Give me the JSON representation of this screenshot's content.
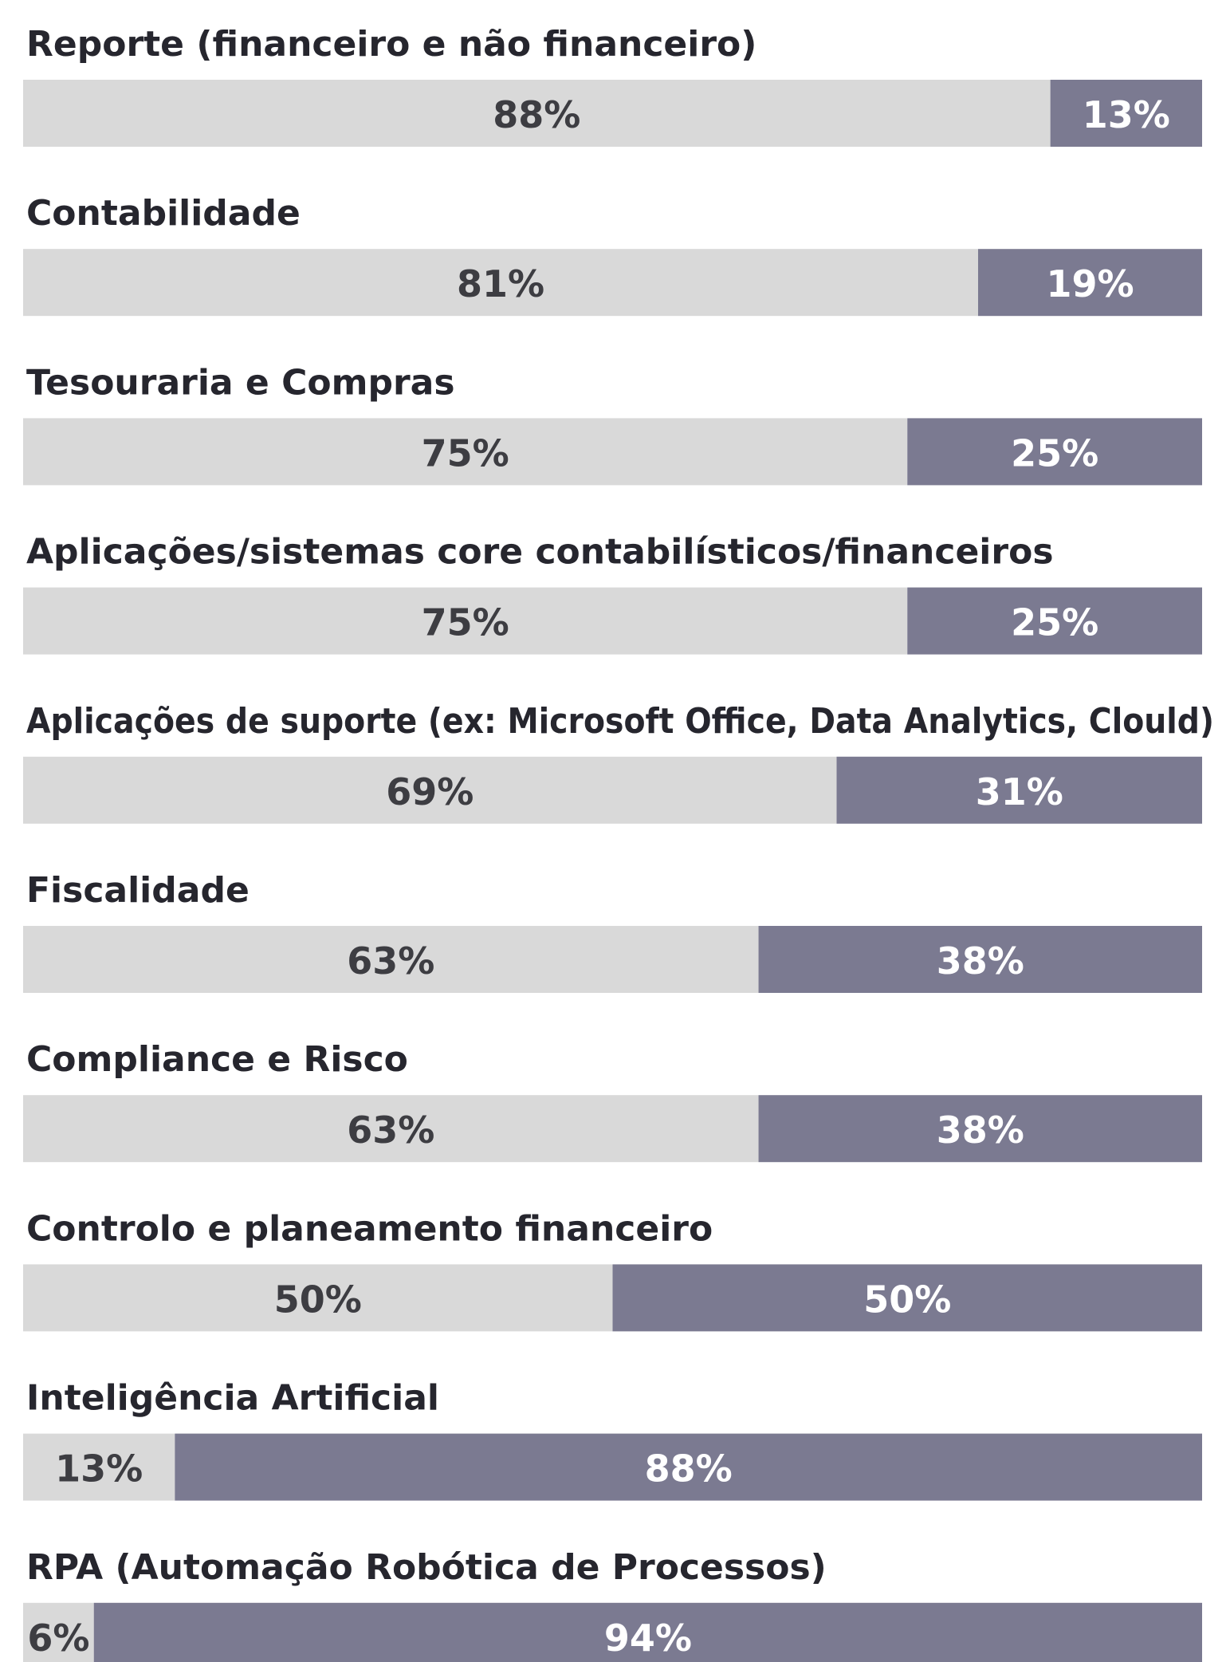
{
  "chart_data": {
    "type": "stacked-bar",
    "categories": [
      "Reporte (financeiro e não financeiro)",
      "Contabilidade",
      "Tesouraria e Compras",
      "Aplicações/sistemas core contabilísticos/financeiros",
      "Aplicações de suporte (ex: Microsoft Office, Data Analytics, Clould)",
      "Fiscalidade",
      "Compliance e Risco",
      "Controlo e planeamento financeiro",
      "Inteligência Artificial",
      "RPA (Automação Robótica de Processos)"
    ],
    "series": [
      {
        "color": "#d9d9d9",
        "values": [
          88,
          81,
          75,
          75,
          69,
          63,
          63,
          50,
          13,
          6
        ],
        "value_labels": [
          "88%",
          "81%",
          "75%",
          "75%",
          "69%",
          "63%",
          "63%",
          "50%",
          "13%",
          "6%"
        ]
      },
      {
        "color": "#7b7a91",
        "values": [
          13,
          19,
          25,
          25,
          31,
          38,
          38,
          50,
          88,
          94
        ],
        "value_labels": [
          "13%",
          "19%",
          "25%",
          "25%",
          "31%",
          "38%",
          "38%",
          "50%",
          "88%",
          "94%"
        ]
      }
    ]
  }
}
